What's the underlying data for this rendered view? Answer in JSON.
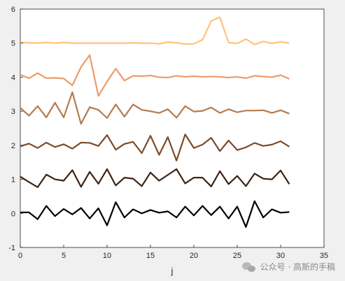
{
  "chart_data": {
    "type": "line",
    "title": "",
    "xlabel": "j",
    "ylabel": "",
    "xlim": [
      0,
      35
    ],
    "ylim": [
      -1,
      6
    ],
    "xticks": [
      0,
      5,
      10,
      15,
      20,
      25,
      30,
      35
    ],
    "yticks": [
      -1,
      0,
      1,
      2,
      3,
      4,
      5,
      6
    ],
    "grid": false,
    "x": [
      0,
      1,
      2,
      3,
      4,
      5,
      6,
      7,
      8,
      9,
      10,
      11,
      12,
      13,
      14,
      15,
      16,
      17,
      18,
      19,
      20,
      21,
      22,
      23,
      24,
      25,
      26,
      27,
      28,
      29,
      30,
      31
    ],
    "series": [
      {
        "color": "#000000",
        "values": [
          0.03,
          0.03,
          -0.17,
          0.22,
          -0.08,
          0.13,
          -0.03,
          0.16,
          -0.15,
          0.15,
          -0.35,
          0.33,
          -0.12,
          0.12,
          0.0,
          0.1,
          0.02,
          0.06,
          -0.12,
          0.2,
          -0.06,
          0.22,
          -0.05,
          0.2,
          -0.15,
          0.2,
          -0.4,
          0.36,
          -0.12,
          0.12,
          0.02,
          0.04
        ]
      },
      {
        "color": "#3d2313",
        "values": [
          1.08,
          0.92,
          0.77,
          1.14,
          1.0,
          0.96,
          1.27,
          0.78,
          1.22,
          0.87,
          1.3,
          0.82,
          1.05,
          1.02,
          0.8,
          1.2,
          0.96,
          1.13,
          1.3,
          0.88,
          1.05,
          1.05,
          0.79,
          1.24,
          0.86,
          1.1,
          0.8,
          1.17,
          1.02,
          1.0,
          1.26,
          0.86
        ]
      },
      {
        "color": "#7d4b2a",
        "values": [
          1.97,
          2.05,
          1.92,
          2.08,
          1.95,
          2.03,
          1.9,
          2.08,
          2.07,
          1.98,
          2.3,
          1.87,
          2.04,
          2.1,
          1.77,
          2.28,
          1.72,
          2.24,
          1.55,
          2.32,
          1.92,
          2.02,
          2.22,
          1.83,
          2.14,
          1.86,
          1.94,
          2.07,
          1.98,
          2.02,
          2.12,
          1.96
        ]
      },
      {
        "color": "#b57c4f",
        "values": [
          3.1,
          2.87,
          3.15,
          2.82,
          3.25,
          2.82,
          3.56,
          2.63,
          3.12,
          3.04,
          2.8,
          3.2,
          2.84,
          3.2,
          3.04,
          3.0,
          2.95,
          3.06,
          2.81,
          3.15,
          2.99,
          3.01,
          3.11,
          2.95,
          3.06,
          2.97,
          3.02,
          3.02,
          3.03,
          2.95,
          3.03,
          2.93
        ]
      },
      {
        "color": "#eb9c6c",
        "values": [
          4.07,
          3.97,
          4.12,
          3.97,
          3.98,
          3.96,
          3.76,
          4.3,
          4.65,
          3.45,
          3.87,
          4.25,
          3.9,
          4.04,
          4.03,
          4.05,
          4.0,
          3.99,
          4.04,
          4.01,
          4.03,
          4.01,
          4.02,
          4.01,
          3.99,
          4.01,
          3.97,
          4.04,
          4.02,
          4.0,
          4.06,
          3.95
        ]
      },
      {
        "color": "#ffc37a",
        "values": [
          5.02,
          5.01,
          5.0,
          5.02,
          5.0,
          5.02,
          5.0,
          5.0,
          5.0,
          5.0,
          5.0,
          5.0,
          5.0,
          5.01,
          5.0,
          5.0,
          4.98,
          5.03,
          5.01,
          4.97,
          4.98,
          5.1,
          5.65,
          5.76,
          5.02,
          4.99,
          5.12,
          4.96,
          5.05,
          4.99,
          5.04,
          5.0
        ]
      }
    ]
  },
  "watermark": {
    "text": "公众号 · 高斯的手稿",
    "icon": "wechat-icon"
  }
}
